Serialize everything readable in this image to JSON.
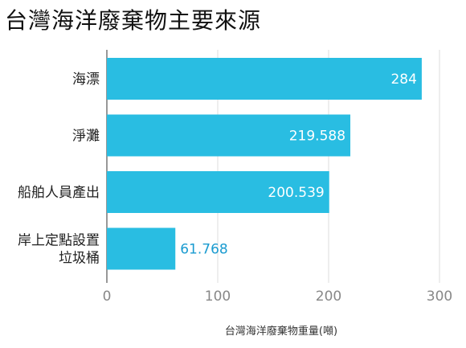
{
  "chart_data": {
    "type": "bar",
    "orientation": "horizontal",
    "title": "台灣海洋廢棄物主要來源",
    "xlabel": "台灣海洋廢棄物重量(噸)",
    "ylabel": "",
    "categories": [
      [
        "海漂"
      ],
      [
        "淨灘"
      ],
      [
        "船舶人員產出"
      ],
      [
        "岸上定點設置",
        "垃圾桶"
      ]
    ],
    "values": [
      284,
      219.588,
      200.539,
      61.768
    ],
    "data_labels": [
      "284",
      "219.588",
      "200.539",
      "61.768"
    ],
    "xlim": [
      0,
      300
    ],
    "x_ticks": [
      0,
      100,
      200,
      300
    ],
    "grid": true,
    "bar_color": "#29bde2",
    "label_inside_color": "#ffffff",
    "label_outside_color": "#1a9bd0"
  }
}
